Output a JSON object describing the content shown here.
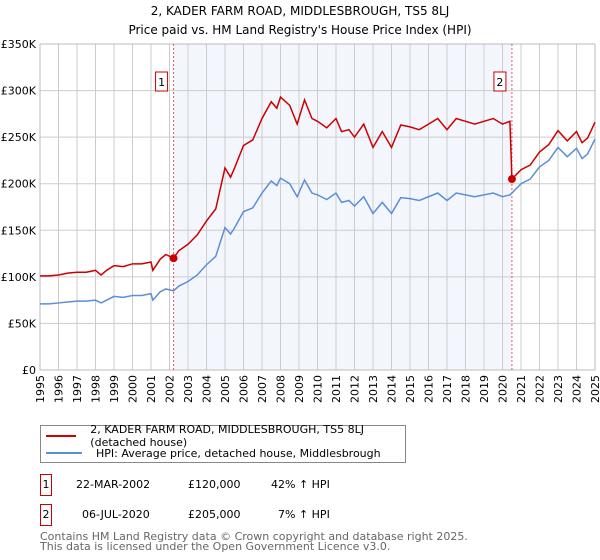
{
  "chart_data": {
    "type": "line",
    "title": "2, KADER FARM ROAD, MIDDLESBROUGH, TS5 8LJ",
    "subtitle": "Price paid vs. HM Land Registry's House Price Index (HPI)",
    "units": "GBP thousands",
    "xlim": [
      1995,
      2025
    ],
    "ylim": [
      0,
      350
    ],
    "yticks": [
      0,
      50,
      100,
      150,
      200,
      250,
      300,
      350
    ],
    "ytick_labels": [
      "£0",
      "£50K",
      "£100K",
      "£150K",
      "£200K",
      "£250K",
      "£300K",
      "£350K"
    ],
    "xticks": [
      "1995",
      "1996",
      "1997",
      "1998",
      "1999",
      "2000",
      "2001",
      "2002",
      "2003",
      "2004",
      "2005",
      "2006",
      "2007",
      "2008",
      "2009",
      "2010",
      "2011",
      "2012",
      "2013",
      "2014",
      "2015",
      "2016",
      "2017",
      "2018",
      "2019",
      "2020",
      "2021",
      "2022",
      "2023",
      "2024",
      "2025"
    ],
    "grid": true,
    "x": [
      1995,
      1995.5,
      1996,
      1996.5,
      1997,
      1997.5,
      1998,
      1998.3,
      1998.6,
      1999,
      1999.5,
      2000,
      2000.5,
      2001,
      2001.1,
      2001.5,
      2001.8,
      2002.22,
      2002.5,
      2003,
      2003.5,
      2004,
      2004.5,
      2005,
      2005.3,
      2005.5,
      2006,
      2006.5,
      2007,
      2007.5,
      2007.8,
      2008,
      2008.5,
      2008.9,
      2009.3,
      2009.7,
      2010,
      2010.5,
      2011,
      2011.3,
      2011.7,
      2012,
      2012.5,
      2013,
      2013.5,
      2014,
      2014.5,
      2015,
      2015.5,
      2016,
      2016.5,
      2017,
      2017.5,
      2018,
      2018.5,
      2019,
      2019.5,
      2020,
      2020.4,
      2020.51,
      2021,
      2021.5,
      2022,
      2022.5,
      2023,
      2023.5,
      2024,
      2024.3,
      2024.6,
      2025
    ],
    "series": [
      {
        "name": "2, KADER FARM ROAD, MIDDLESBROUGH, TS5 8LJ (detached house)",
        "color": "#cc0000",
        "values": [
          101,
          101,
          102,
          104,
          105,
          105,
          107,
          102,
          107,
          112,
          111,
          114,
          114,
          116,
          107,
          119,
          124,
          120,
          128,
          135,
          145,
          160,
          173,
          217,
          207,
          216,
          241,
          247,
          270,
          288,
          281,
          293,
          284,
          264,
          290,
          270,
          267,
          260,
          270,
          256,
          258,
          250,
          264,
          239,
          256,
          239,
          263,
          261,
          258,
          264,
          270,
          258,
          270,
          267,
          264,
          267,
          270,
          264,
          267,
          205,
          215,
          220,
          234,
          242,
          257,
          246,
          256,
          244,
          249,
          266
        ]
      },
      {
        "name": "HPI: Average price, detached house, Middlesbrough",
        "color": "#5b8fd4",
        "values": [
          71,
          71,
          72,
          73,
          74,
          74,
          75,
          72,
          75,
          79,
          78,
          80,
          80,
          82,
          75,
          84,
          87,
          85,
          90,
          95,
          102,
          113,
          122,
          153,
          146,
          152,
          170,
          174,
          190,
          203,
          198,
          206,
          200,
          186,
          204,
          190,
          188,
          183,
          190,
          180,
          182,
          176,
          186,
          168,
          180,
          168,
          185,
          184,
          182,
          186,
          190,
          182,
          190,
          188,
          186,
          188,
          190,
          186,
          188,
          190,
          200,
          205,
          218,
          225,
          239,
          229,
          238,
          227,
          232,
          248
        ]
      }
    ],
    "annotations": [
      {
        "label": "1",
        "x": 2002.22,
        "y": 120
      },
      {
        "label": "2",
        "x": 2020.51,
        "y": 205
      }
    ],
    "shaded_range": [
      2002.22,
      2020.51
    ]
  },
  "transactions": [
    {
      "num": "1",
      "date": "22-MAR-2002",
      "price": "£120,000",
      "hpi": "42% ↑ HPI"
    },
    {
      "num": "2",
      "date": "06-JUL-2020",
      "price": "£205,000",
      "hpi": "7% ↑ HPI"
    }
  ],
  "footer": [
    "Contains HM Land Registry data © Crown copyright and database right 2025.",
    "This data is licensed under the Open Government Licence v3.0."
  ]
}
